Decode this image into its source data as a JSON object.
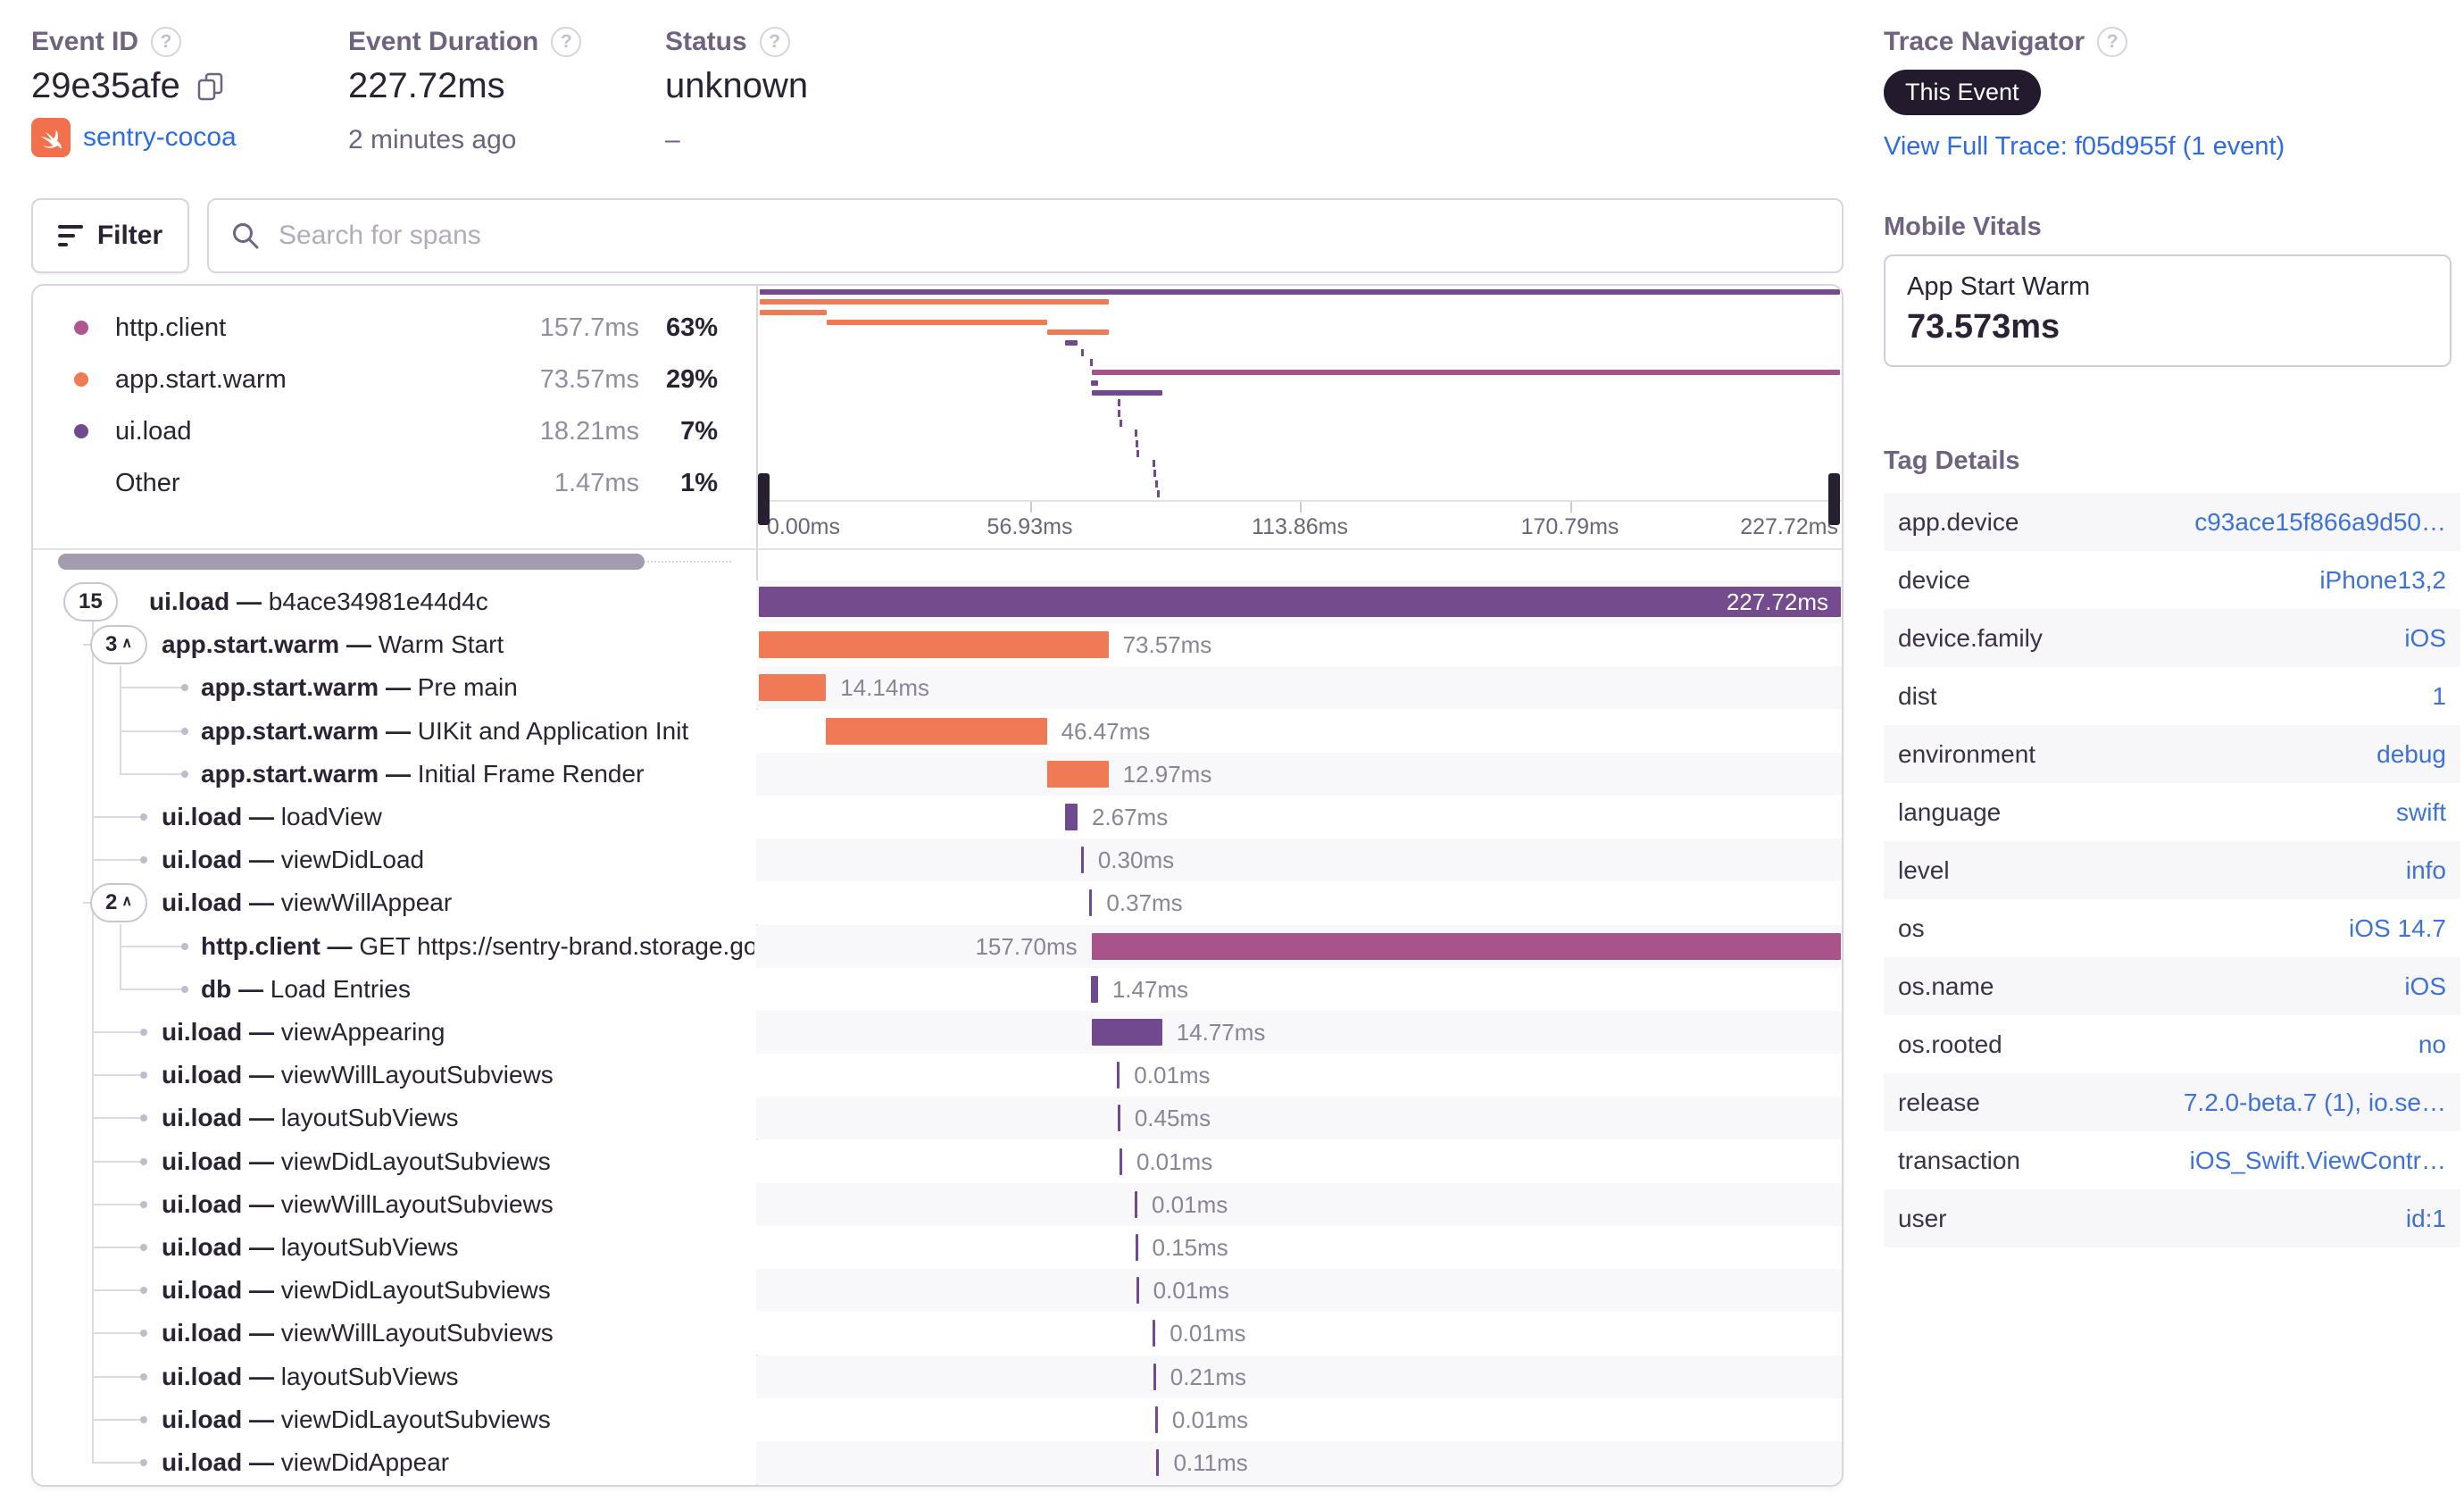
{
  "header": {
    "event_id": {
      "label": "Event ID",
      "value": "29e35afe",
      "project": "sentry-cocoa"
    },
    "event_duration": {
      "label": "Event Duration",
      "value": "227.72ms",
      "sub": "2 minutes ago"
    },
    "status": {
      "label": "Status",
      "value": "unknown",
      "sub": "–"
    },
    "trace_navigator": {
      "label": "Trace Navigator",
      "badge": "This Event",
      "link": "View Full Trace: f05d955f (1 event)"
    }
  },
  "toolbar": {
    "filter_label": "Filter",
    "search_placeholder": "Search for spans"
  },
  "legend": {
    "items": [
      {
        "name": "http.client",
        "duration": "157.7ms",
        "pct": "63%",
        "color": "#B0568E"
      },
      {
        "name": "app.start.warm",
        "duration": "73.57ms",
        "pct": "29%",
        "color": "#F07A54"
      },
      {
        "name": "ui.load",
        "duration": "18.21ms",
        "pct": "7%",
        "color": "#6F4A90"
      },
      {
        "name": "Other",
        "duration": "1.47ms",
        "pct": "1%",
        "color": ""
      }
    ]
  },
  "minimap": {
    "axis": [
      "0.00ms",
      "56.93ms",
      "113.86ms",
      "170.79ms",
      "227.72ms"
    ],
    "total_ms": 227.72
  },
  "colors": {
    "purple": "#71498E",
    "root": "#744B8C",
    "orange": "#EF7A55",
    "magenta": "#A85389"
  },
  "spans": [
    {
      "depth": 0,
      "badge": "15",
      "chevron": false,
      "op": "ui.load",
      "desc": "b4ace34981e44d4c",
      "duration": "227.72ms",
      "start_ms": 0,
      "ms": 227.72,
      "color": "root",
      "label_pos": "inside"
    },
    {
      "depth": 1,
      "badge": "3",
      "chevron": true,
      "op": "app.start.warm",
      "desc": "Warm Start",
      "duration": "73.57ms",
      "start_ms": 0,
      "ms": 73.57,
      "color": "orange",
      "label_pos": "right"
    },
    {
      "depth": 2,
      "op": "app.start.warm",
      "desc": "Pre main",
      "duration": "14.14ms",
      "start_ms": 0,
      "ms": 14.14,
      "color": "orange",
      "label_pos": "right"
    },
    {
      "depth": 2,
      "op": "app.start.warm",
      "desc": "UIKit and Application Init",
      "duration": "46.47ms",
      "start_ms": 14.14,
      "ms": 46.47,
      "color": "orange",
      "label_pos": "right"
    },
    {
      "depth": 2,
      "op": "app.start.warm",
      "desc": "Initial Frame Render",
      "duration": "12.97ms",
      "start_ms": 60.61,
      "ms": 12.97,
      "color": "orange",
      "label_pos": "right"
    },
    {
      "depth": 1,
      "op": "ui.load",
      "desc": "loadView",
      "duration": "2.67ms",
      "start_ms": 64.4,
      "ms": 2.67,
      "color": "purple",
      "label_pos": "right"
    },
    {
      "depth": 1,
      "op": "ui.load",
      "desc": "viewDidLoad",
      "duration": "0.30ms",
      "start_ms": 67.8,
      "ms": 0.3,
      "color": "purple",
      "label_pos": "right"
    },
    {
      "depth": 1,
      "badge": "2",
      "chevron": true,
      "op": "ui.load",
      "desc": "viewWillAppear",
      "duration": "0.37ms",
      "start_ms": 69.6,
      "ms": 0.37,
      "color": "purple",
      "label_pos": "right"
    },
    {
      "depth": 2,
      "op": "http.client",
      "desc": "GET https://sentry-brand.storage.googlea",
      "duration": "157.70ms",
      "start_ms": 70.02,
      "ms": 157.7,
      "color": "magenta",
      "label_pos": "left"
    },
    {
      "depth": 2,
      "op": "db",
      "desc": "Load Entries",
      "duration": "1.47ms",
      "start_ms": 69.9,
      "ms": 1.47,
      "color": "purple",
      "label_pos": "right"
    },
    {
      "depth": 1,
      "op": "ui.load",
      "desc": "viewAppearing",
      "duration": "14.77ms",
      "start_ms": 70.1,
      "ms": 14.77,
      "color": "purple",
      "label_pos": "right"
    },
    {
      "depth": 1,
      "op": "ui.load",
      "desc": "viewWillLayoutSubviews",
      "duration": "0.01ms",
      "start_ms": 75.4,
      "ms": 0.01,
      "color": "purple",
      "label_pos": "right"
    },
    {
      "depth": 1,
      "op": "ui.load",
      "desc": "layoutSubViews",
      "duration": "0.45ms",
      "start_ms": 75.5,
      "ms": 0.45,
      "color": "purple",
      "label_pos": "right"
    },
    {
      "depth": 1,
      "op": "ui.load",
      "desc": "viewDidLayoutSubviews",
      "duration": "0.01ms",
      "start_ms": 75.9,
      "ms": 0.01,
      "color": "purple",
      "label_pos": "right"
    },
    {
      "depth": 1,
      "op": "ui.load",
      "desc": "viewWillLayoutSubviews",
      "duration": "0.01ms",
      "start_ms": 79.1,
      "ms": 0.01,
      "color": "purple",
      "label_pos": "right"
    },
    {
      "depth": 1,
      "op": "ui.load",
      "desc": "layoutSubViews",
      "duration": "0.15ms",
      "start_ms": 79.2,
      "ms": 0.15,
      "color": "purple",
      "label_pos": "right"
    },
    {
      "depth": 1,
      "op": "ui.load",
      "desc": "viewDidLayoutSubviews",
      "duration": "0.01ms",
      "start_ms": 79.4,
      "ms": 0.01,
      "color": "purple",
      "label_pos": "right"
    },
    {
      "depth": 1,
      "op": "ui.load",
      "desc": "viewWillLayoutSubviews",
      "duration": "0.01ms",
      "start_ms": 82.9,
      "ms": 0.01,
      "color": "purple",
      "label_pos": "right"
    },
    {
      "depth": 1,
      "op": "ui.load",
      "desc": "layoutSubViews",
      "duration": "0.21ms",
      "start_ms": 83.0,
      "ms": 0.21,
      "color": "purple",
      "label_pos": "right"
    },
    {
      "depth": 1,
      "op": "ui.load",
      "desc": "viewDidLayoutSubviews",
      "duration": "0.01ms",
      "start_ms": 83.4,
      "ms": 0.01,
      "color": "purple",
      "label_pos": "right"
    },
    {
      "depth": 1,
      "op": "ui.load",
      "desc": "viewDidAppear",
      "duration": "0.11ms",
      "start_ms": 83.7,
      "ms": 0.11,
      "color": "purple",
      "label_pos": "right"
    }
  ],
  "vitals": {
    "heading": "Mobile Vitals",
    "card_title": "App Start Warm",
    "card_value": "73.573ms"
  },
  "tags": {
    "heading": "Tag Details",
    "rows": [
      {
        "key": "app.device",
        "value": "c93ace15f866a9d50…"
      },
      {
        "key": "device",
        "value": "iPhone13,2"
      },
      {
        "key": "device.family",
        "value": "iOS"
      },
      {
        "key": "dist",
        "value": "1"
      },
      {
        "key": "environment",
        "value": "debug"
      },
      {
        "key": "language",
        "value": "swift"
      },
      {
        "key": "level",
        "value": "info"
      },
      {
        "key": "os",
        "value": "iOS 14.7"
      },
      {
        "key": "os.name",
        "value": "iOS"
      },
      {
        "key": "os.rooted",
        "value": "no"
      },
      {
        "key": "release",
        "value": "7.2.0-beta.7 (1), io.se…"
      },
      {
        "key": "transaction",
        "value": "iOS_Swift.ViewContr…"
      },
      {
        "key": "user",
        "value": "id:1"
      }
    ]
  }
}
